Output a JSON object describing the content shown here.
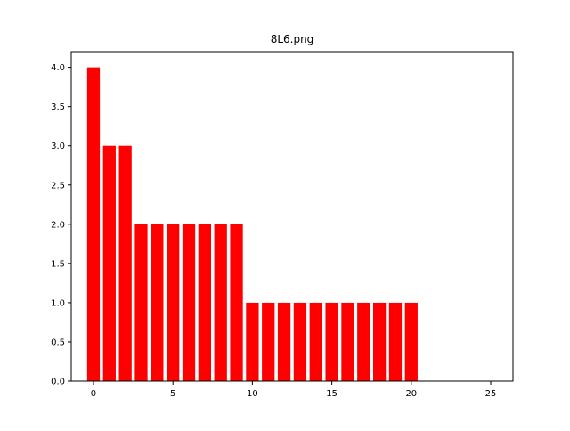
{
  "chart_data": {
    "type": "bar",
    "title": "8L6.png",
    "xlabel": "",
    "ylabel": "",
    "x": [
      0,
      1,
      2,
      3,
      4,
      5,
      6,
      7,
      8,
      9,
      10,
      11,
      12,
      13,
      14,
      15,
      16,
      17,
      18,
      19,
      20
    ],
    "values": [
      4,
      3,
      3,
      2,
      2,
      2,
      2,
      2,
      2,
      2,
      1,
      1,
      1,
      1,
      1,
      1,
      1,
      1,
      1,
      1,
      1
    ],
    "bar_width": 0.8,
    "bar_color": "#ff0000",
    "xlim": [
      -1.4,
      26.4
    ],
    "ylim": [
      0,
      4.2
    ],
    "xticks": [
      0,
      5,
      10,
      15,
      20,
      25
    ],
    "xtick_labels": [
      "0",
      "5",
      "10",
      "15",
      "20",
      "25"
    ],
    "yticks": [
      0,
      0.5,
      1,
      1.5,
      2,
      2.5,
      3,
      3.5,
      4
    ],
    "ytick_labels": [
      "0.0",
      "0.5",
      "1.0",
      "1.5",
      "2.0",
      "2.5",
      "3.0",
      "3.5",
      "4.0"
    ],
    "grid": false,
    "legend": "none"
  }
}
